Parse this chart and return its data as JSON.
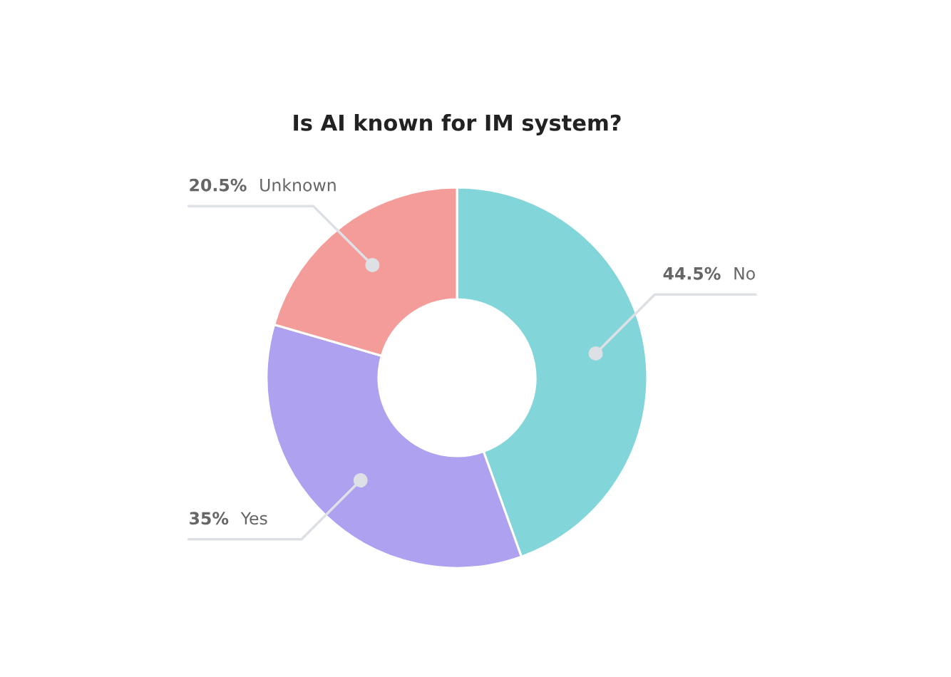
{
  "chart_data": {
    "type": "donut",
    "title": "Is AI known for IM system?",
    "categories": [
      "No",
      "Yes",
      "Unknown"
    ],
    "values": [
      44.5,
      35,
      20.5
    ],
    "colors": [
      "#82d5d9",
      "#aea1f0",
      "#f49c9a"
    ],
    "value_labels": [
      "44.5%",
      "35%",
      "20.5%"
    ]
  }
}
